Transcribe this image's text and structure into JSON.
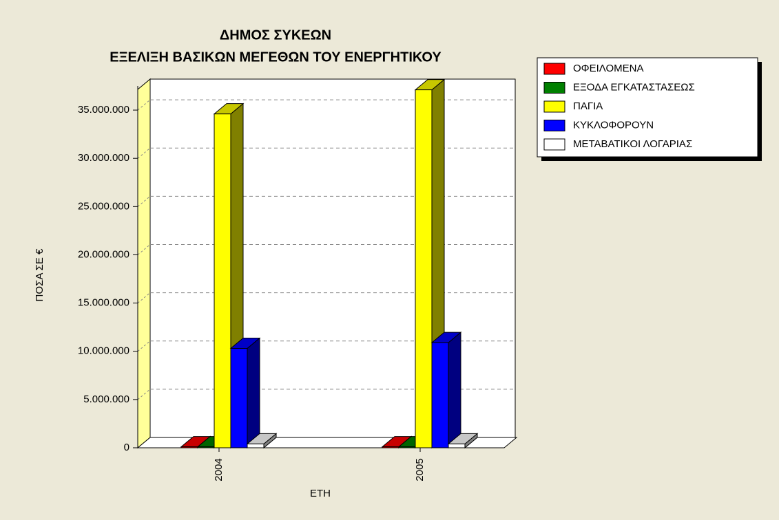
{
  "chart_data": {
    "type": "bar3d",
    "title": "ΔΗΜΟΣ ΣΥΚΕΩΝ",
    "subtitle": "ΕΞΕΛΙΞΗ ΒΑΣΙΚΩΝ ΜΕΓΕΘΩΝ ΤΟΥ ΕΝΕΡΓΗΤΙΚΟΥ",
    "x_label": "ΕΤΗ",
    "y_label": "ΠΟΣΑ ΣΕ €",
    "categories": [
      "2004",
      "2005"
    ],
    "series": [
      {
        "name": "ΟΦΕΙΛΟΜΕΝΑ",
        "color": "#ff0000",
        "values": [
          100000,
          100000
        ]
      },
      {
        "name": "ΕΞΟΔΑ ΕΓΚΑΤΑΣΤΑΣΕΩΣ",
        "color": "#008000",
        "values": [
          100000,
          100000
        ]
      },
      {
        "name": "ΠΑΓΙΑ",
        "color": "#ffff00",
        "values": [
          34600000,
          37100000
        ]
      },
      {
        "name": "ΚΥΚΛΟΦΟΡΟΥΝ",
        "color": "#0000ff",
        "values": [
          10300000,
          10900000
        ]
      },
      {
        "name": "ΜΕΤΑΒΑΤΙΚΟΙ ΛΟΓΑΡΙΑΣ",
        "color": "#ffffff",
        "values": [
          400000,
          400000
        ]
      }
    ],
    "ylim": [
      0,
      37500000
    ],
    "yticks": [
      0,
      {
        "value": 5000000,
        "label": "5.000.000"
      },
      {
        "value": 10000000,
        "label": "10.000.000"
      },
      {
        "value": 15000000,
        "label": "15.000.000"
      },
      {
        "value": 20000000,
        "label": "20.000.000"
      },
      {
        "value": 25000000,
        "label": "25.000.000"
      },
      {
        "value": 30000000,
        "label": "30.000.000"
      },
      {
        "value": 35000000,
        "label": "35.000.000"
      }
    ],
    "grid": true,
    "legend": "right"
  }
}
